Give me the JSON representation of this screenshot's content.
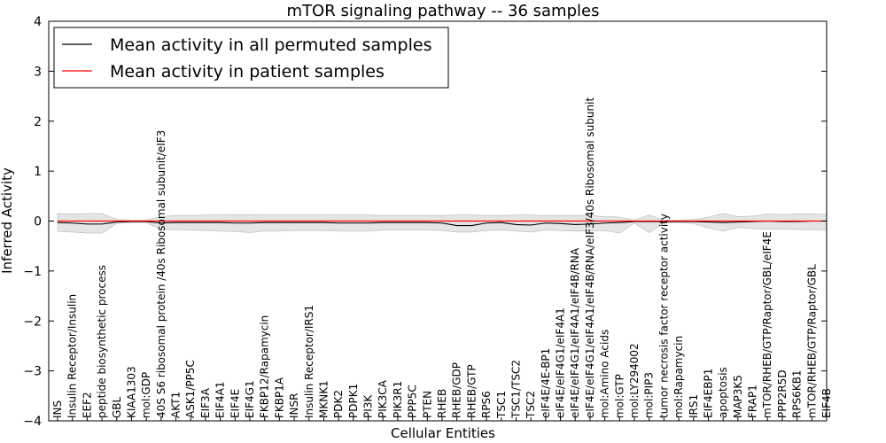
{
  "chart_data": {
    "type": "line",
    "title": "mTOR signaling pathway -- 36 samples",
    "xlabel": "Cellular Entities",
    "ylabel": "Inferred Activity",
    "ylim": [
      -4,
      4
    ],
    "yticks": [
      "−4",
      "−3",
      "−2",
      "−1",
      "0",
      "1",
      "2",
      "3",
      "4"
    ],
    "grid": false,
    "legend_position": "top-left",
    "categories": [
      "INS",
      "Insulin Receptor/Insulin",
      "EEF2",
      "peptide biosynthetic process",
      "GBL",
      "KIAA1303",
      "mol:GDP",
      "40S S6 ribosomal protein /40s Ribosomal subunit/eIF3",
      "AKT1",
      "ASK1/PP5C",
      "EIF3A",
      "EIF4A1",
      "EIF4E",
      "EIF4G1",
      "FKBP12/Rapamycin",
      "FKBP1A",
      "INSR",
      "Insulin Receptor/IRS1",
      "MKNK1",
      "PDK2",
      "PDPK1",
      "PI3K",
      "PIK3CA",
      "PIK3R1",
      "PPP5C",
      "PTEN",
      "RHEB",
      "RHEB/GDP",
      "RHEB/GTP",
      "RPS6",
      "TSC1",
      "TSC1/TSC2",
      "TSC2",
      "eIF4E/4E-BP1",
      "eIF4E/eIF4G1/eIF4A1",
      "eIF4E/eIF4G1/eIF4A1/eIF4B/RNA",
      "eIF4E/eIF4G1/eIF4A1/eIF4B/RNA/eIF3/40s Ribosomal subunit",
      "mol:Amino Acids",
      "mol:GTP",
      "mol:LY294002",
      "mol:PIP3",
      "tumor necrosis factor receptor activity",
      "mol:Rapamycin",
      "IRS1",
      "EIF4EBP1",
      "apoptosis",
      "MAP3K5",
      "FRAP1",
      "mTOR/RHEB/GTP/Raptor/GBL/eIF4E",
      "PPP2R5D",
      "RPS6KB1",
      "mTOR/RHEB/GTP/Raptor/GBL",
      "EIF4B"
    ],
    "series": [
      {
        "name": "Mean activity in all permuted samples",
        "color": "#000000",
        "values": [
          -0.03,
          -0.04,
          -0.06,
          -0.06,
          -0.02,
          -0.01,
          -0.01,
          -0.04,
          -0.03,
          -0.03,
          -0.03,
          -0.03,
          -0.04,
          -0.04,
          -0.03,
          -0.03,
          -0.03,
          -0.03,
          -0.03,
          -0.04,
          -0.04,
          -0.04,
          -0.03,
          -0.03,
          -0.03,
          -0.03,
          -0.04,
          -0.09,
          -0.09,
          -0.04,
          -0.03,
          -0.07,
          -0.08,
          -0.04,
          -0.05,
          -0.07,
          -0.06,
          -0.04,
          -0.03,
          -0.01,
          -0.01,
          -0.01,
          -0.01,
          -0.01,
          -0.02,
          -0.03,
          -0.02,
          -0.01,
          0.0,
          -0.01,
          -0.01,
          0.0,
          0.0
        ]
      },
      {
        "name": "Mean activity in patient samples",
        "color": "#ff0000",
        "values": [
          0.0,
          0.0,
          0.0,
          0.0,
          0.0,
          0.0,
          0.0,
          0.0,
          0.0,
          0.0,
          0.0,
          0.0,
          0.0,
          0.0,
          0.0,
          0.0,
          0.0,
          0.0,
          0.0,
          0.0,
          0.0,
          0.0,
          0.0,
          0.0,
          0.0,
          0.0,
          0.0,
          0.0,
          0.0,
          0.0,
          0.0,
          0.0,
          0.0,
          0.0,
          0.0,
          0.0,
          0.0,
          0.0,
          0.0,
          0.0,
          0.0,
          0.0,
          0.0,
          0.0,
          0.0,
          0.0,
          0.0,
          0.0,
          0.0,
          0.0,
          0.0,
          0.0,
          0.0
        ]
      }
    ],
    "band": {
      "color": "#e0e0e0",
      "upper": [
        0.15,
        0.14,
        0.15,
        0.15,
        0.03,
        0.02,
        0.02,
        0.09,
        0.11,
        0.11,
        0.12,
        0.12,
        0.13,
        0.13,
        0.12,
        0.12,
        0.12,
        0.12,
        0.12,
        0.12,
        0.12,
        0.12,
        0.11,
        0.11,
        0.11,
        0.11,
        0.11,
        0.12,
        0.12,
        0.11,
        0.11,
        0.12,
        0.12,
        0.11,
        0.11,
        0.11,
        0.11,
        0.09,
        0.08,
        0.02,
        0.12,
        0.02,
        0.02,
        0.03,
        0.08,
        0.15,
        0.09,
        0.1,
        0.14,
        0.13,
        0.14,
        0.14,
        0.13
      ],
      "lower": [
        -0.21,
        -0.22,
        -0.24,
        -0.24,
        -0.05,
        -0.03,
        -0.03,
        -0.17,
        -0.17,
        -0.18,
        -0.19,
        -0.2,
        -0.21,
        -0.23,
        -0.2,
        -0.2,
        -0.19,
        -0.19,
        -0.19,
        -0.2,
        -0.2,
        -0.2,
        -0.18,
        -0.18,
        -0.18,
        -0.18,
        -0.19,
        -0.22,
        -0.22,
        -0.19,
        -0.18,
        -0.2,
        -0.22,
        -0.18,
        -0.19,
        -0.2,
        -0.2,
        -0.19,
        -0.24,
        -0.04,
        -0.23,
        -0.04,
        -0.03,
        -0.05,
        -0.14,
        -0.2,
        -0.13,
        -0.15,
        -0.16,
        -0.16,
        -0.17,
        -0.17,
        -0.18
      ]
    }
  }
}
